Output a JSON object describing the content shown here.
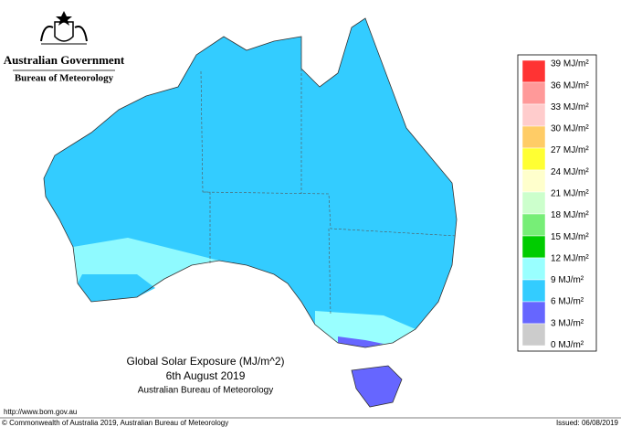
{
  "header": {
    "government": "Australian Government",
    "bureau": "Bureau of Meteorology"
  },
  "legend": {
    "labels": [
      "39 MJ/m²",
      "36 MJ/m²",
      "33 MJ/m²",
      "30 MJ/m²",
      "27 MJ/m²",
      "24 MJ/m²",
      "21 MJ/m²",
      "18 MJ/m²",
      "15 MJ/m²",
      "12 MJ/m²",
      "9 MJ/m²",
      "6 MJ/m²",
      "3 MJ/m²",
      "0 MJ/m²"
    ],
    "colors": [
      "#ff3333",
      "#ff9999",
      "#ffcccc",
      "#ffcc66",
      "#ffff33",
      "#ffffcc",
      "#ccffcc",
      "#77ee77",
      "#00cc00",
      "#99ffff",
      "#33ccff",
      "#6666ff",
      "#cccccc"
    ]
  },
  "caption": {
    "title": "Global Solar Exposure (MJ/m^2)",
    "date": "6th August 2019",
    "source": "Australian Bureau of Meteorology"
  },
  "footer": {
    "url": "http://www.bom.gov.au",
    "copyright": "© Commonwealth of Australia 2019, Australian Bureau of Meteorology",
    "issued": "Issued: 06/08/2019"
  }
}
